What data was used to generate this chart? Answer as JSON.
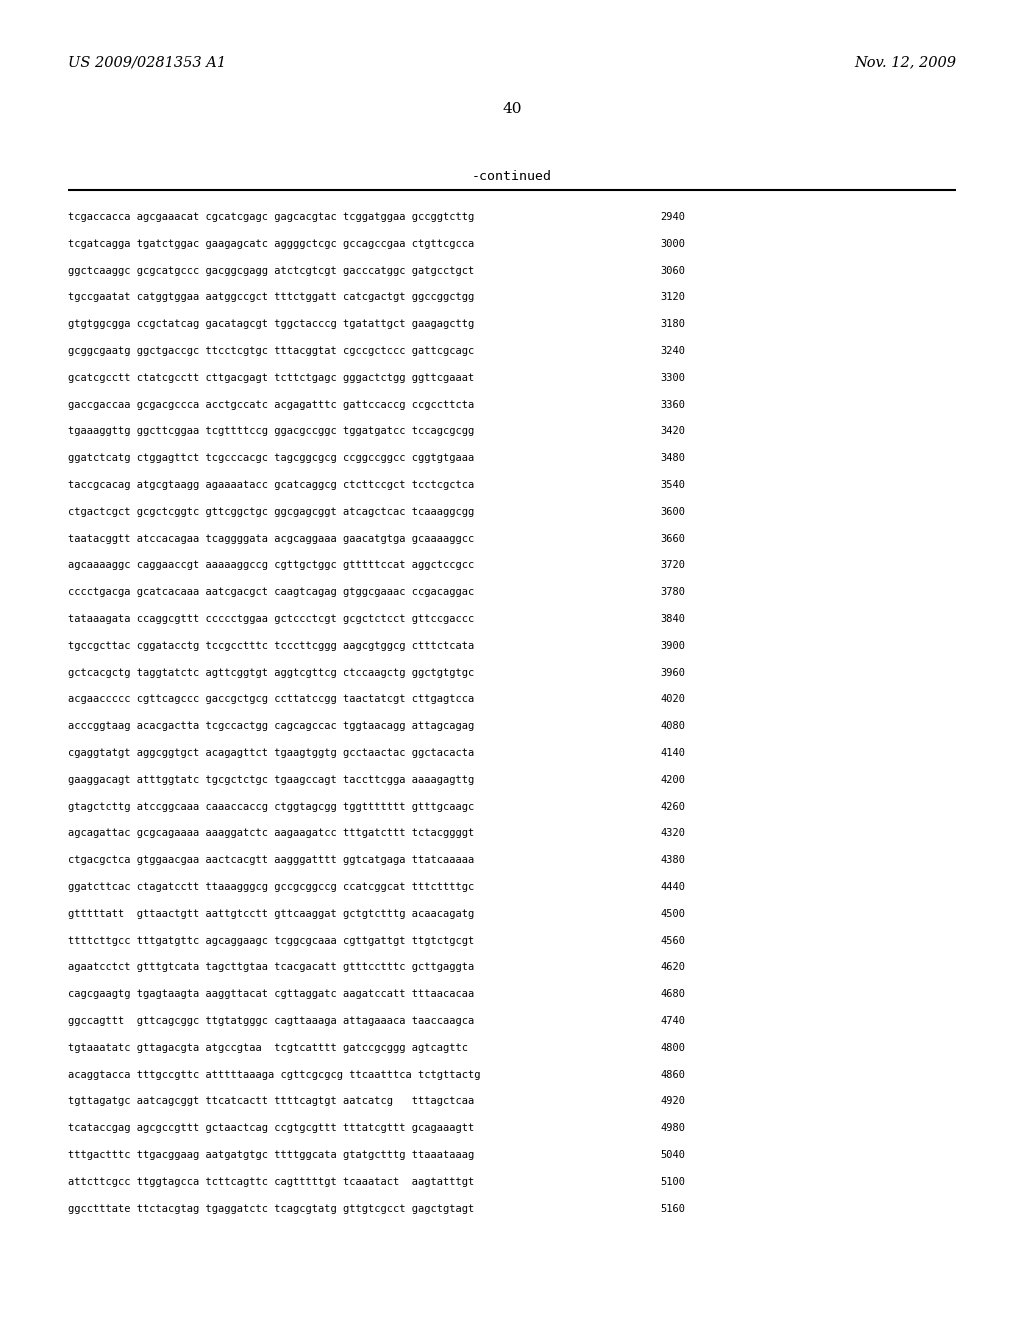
{
  "header_left": "US 2009/0281353 A1",
  "header_right": "Nov. 12, 2009",
  "page_number": "40",
  "continued_label": "-continued",
  "background_color": "#ffffff",
  "text_color": "#000000",
  "sequences": [
    {
      "seq": "tcgaccacca agcgaaacat cgcatcgagc gagcacgtac tcggatggaa gccggtcttg",
      "num": "2940"
    },
    {
      "seq": "tcgatcagga tgatctggac gaagagcatc aggggctcgc gccagccgaa ctgttcgcca",
      "num": "3000"
    },
    {
      "seq": "ggctcaaggc gcgcatgccc gacggcgagg atctcgtcgt gacccatggc gatgcctgct",
      "num": "3060"
    },
    {
      "seq": "tgccgaatat catggtggaa aatggccgct tttctggatt catcgactgt ggccggctgg",
      "num": "3120"
    },
    {
      "seq": "gtgtggcgga ccgctatcag gacatagcgt tggctacccg tgatattgct gaagagcttg",
      "num": "3180"
    },
    {
      "seq": "gcggcgaatg ggctgaccgc ttcctcgtgc tttacggtat cgccgctccc gattcgcagc",
      "num": "3240"
    },
    {
      "seq": "gcatcgcctt ctatcgcctt cttgacgagt tcttctgagc gggactctgg ggttcgaaat",
      "num": "3300"
    },
    {
      "seq": "gaccgaccaa gcgacgccca acctgccatc acgagatttc gattccaccg ccgccttcta",
      "num": "3360"
    },
    {
      "seq": "tgaaaggttg ggcttcggaa tcgttttccg ggacgccggc tggatgatcc tccagcgcgg",
      "num": "3420"
    },
    {
      "seq": "ggatctcatg ctggagttct tcgcccacgc tagcggcgcg ccggccggcc cggtgtgaaa",
      "num": "3480"
    },
    {
      "seq": "taccgcacag atgcgtaagg agaaaatacc gcatcaggcg ctcttccgct tcctcgctca",
      "num": "3540"
    },
    {
      "seq": "ctgactcgct gcgctcggtc gttcggctgc ggcgagcggt atcagctcac tcaaaggcgg",
      "num": "3600"
    },
    {
      "seq": "taatacggtt atccacagaa tcaggggata acgcaggaaa gaacatgtga gcaaaaggcc",
      "num": "3660"
    },
    {
      "seq": "agcaaaaggc caggaaccgt aaaaaggccg cgttgctggc gtttttccat aggctccgcc",
      "num": "3720"
    },
    {
      "seq": "cccctgacga gcatcacaaa aatcgacgct caagtcagag gtggcgaaac ccgacaggac",
      "num": "3780"
    },
    {
      "seq": "tataaagata ccaggcgttt ccccctggaa gctccctcgt gcgctctcct gttccgaccc",
      "num": "3840"
    },
    {
      "seq": "tgccgcttac cggatacctg tccgcctttc tcccttcggg aagcgtggcg ctttctcata",
      "num": "3900"
    },
    {
      "seq": "gctcacgctg taggtatctc agttcggtgt aggtcgttcg ctccaagctg ggctgtgtgc",
      "num": "3960"
    },
    {
      "seq": "acgaaccccc cgttcagccc gaccgctgcg ccttatccgg taactatcgt cttgagtcca",
      "num": "4020"
    },
    {
      "seq": "acccggtaag acacgactta tcgccactgg cagcagccac tggtaacagg attagcagag",
      "num": "4080"
    },
    {
      "seq": "cgaggtatgt aggcggtgct acagagttct tgaagtggtg gcctaactac ggctacacta",
      "num": "4140"
    },
    {
      "seq": "gaaggacagt atttggtatc tgcgctctgc tgaagccagt taccttcgga aaaagagttg",
      "num": "4200"
    },
    {
      "seq": "gtagctcttg atccggcaaa caaaccaccg ctggtagcgg tggttttttt gtttgcaagc",
      "num": "4260"
    },
    {
      "seq": "agcagattac gcgcagaaaa aaaggatctc aagaagatcc tttgatcttt tctacggggt",
      "num": "4320"
    },
    {
      "seq": "ctgacgctca gtggaacgaa aactcacgtt aagggatttt ggtcatgaga ttatcaaaaa",
      "num": "4380"
    },
    {
      "seq": "ggatcttcac ctagatcctt ttaaagggcg gccgcggccg ccatcggcat tttcttttgc",
      "num": "4440"
    },
    {
      "seq": "gtttttatt  gttaactgtt aattgtcctt gttcaaggat gctgtctttg acaacagatg",
      "num": "4500"
    },
    {
      "seq": "ttttcttgcc tttgatgttc agcaggaagc tcggcgcaaa cgttgattgt ttgtctgcgt",
      "num": "4560"
    },
    {
      "seq": "agaatcctct gtttgtcata tagcttgtaa tcacgacatt gtttcctttc gcttgaggta",
      "num": "4620"
    },
    {
      "seq": "cagcgaagtg tgagtaagta aaggttacat cgttaggatc aagatccatt tttaacacaa",
      "num": "4680"
    },
    {
      "seq": "ggccagttt  gttcagcggc ttgtatgggc cagttaaaga attagaaaca taaccaagca",
      "num": "4740"
    },
    {
      "seq": "tgtaaatatc gttagacgta atgccgtaa  tcgtcatttt gatccgcggg agtcagttc",
      "num": "4800"
    },
    {
      "seq": "acaggtacca tttgccgttc atttttaaaga cgttcgcgcg ttcaatttca tctgttactg",
      "num": "4860"
    },
    {
      "seq": "tgttagatgc aatcagcggt ttcatcactt ttttcagtgt aatcatcg   tttagctcaa",
      "num": "4920"
    },
    {
      "seq": "tcataccgag agcgccgttt gctaactcag ccgtgcgttt tttatcgttt gcagaaagtt",
      "num": "4980"
    },
    {
      "seq": "tttgactttc ttgacggaag aatgatgtgc ttttggcata gtatgctttg ttaaataaag",
      "num": "5040"
    },
    {
      "seq": "attcttcgcc ttggtagcca tcttcagttc cagtttttgt tcaaatact  aagtatttgt",
      "num": "5100"
    },
    {
      "seq": "ggcctttate ttctacgtag tgaggatctc tcagcgtatg gttgtcgcct gagctgtagt",
      "num": "5160"
    }
  ]
}
